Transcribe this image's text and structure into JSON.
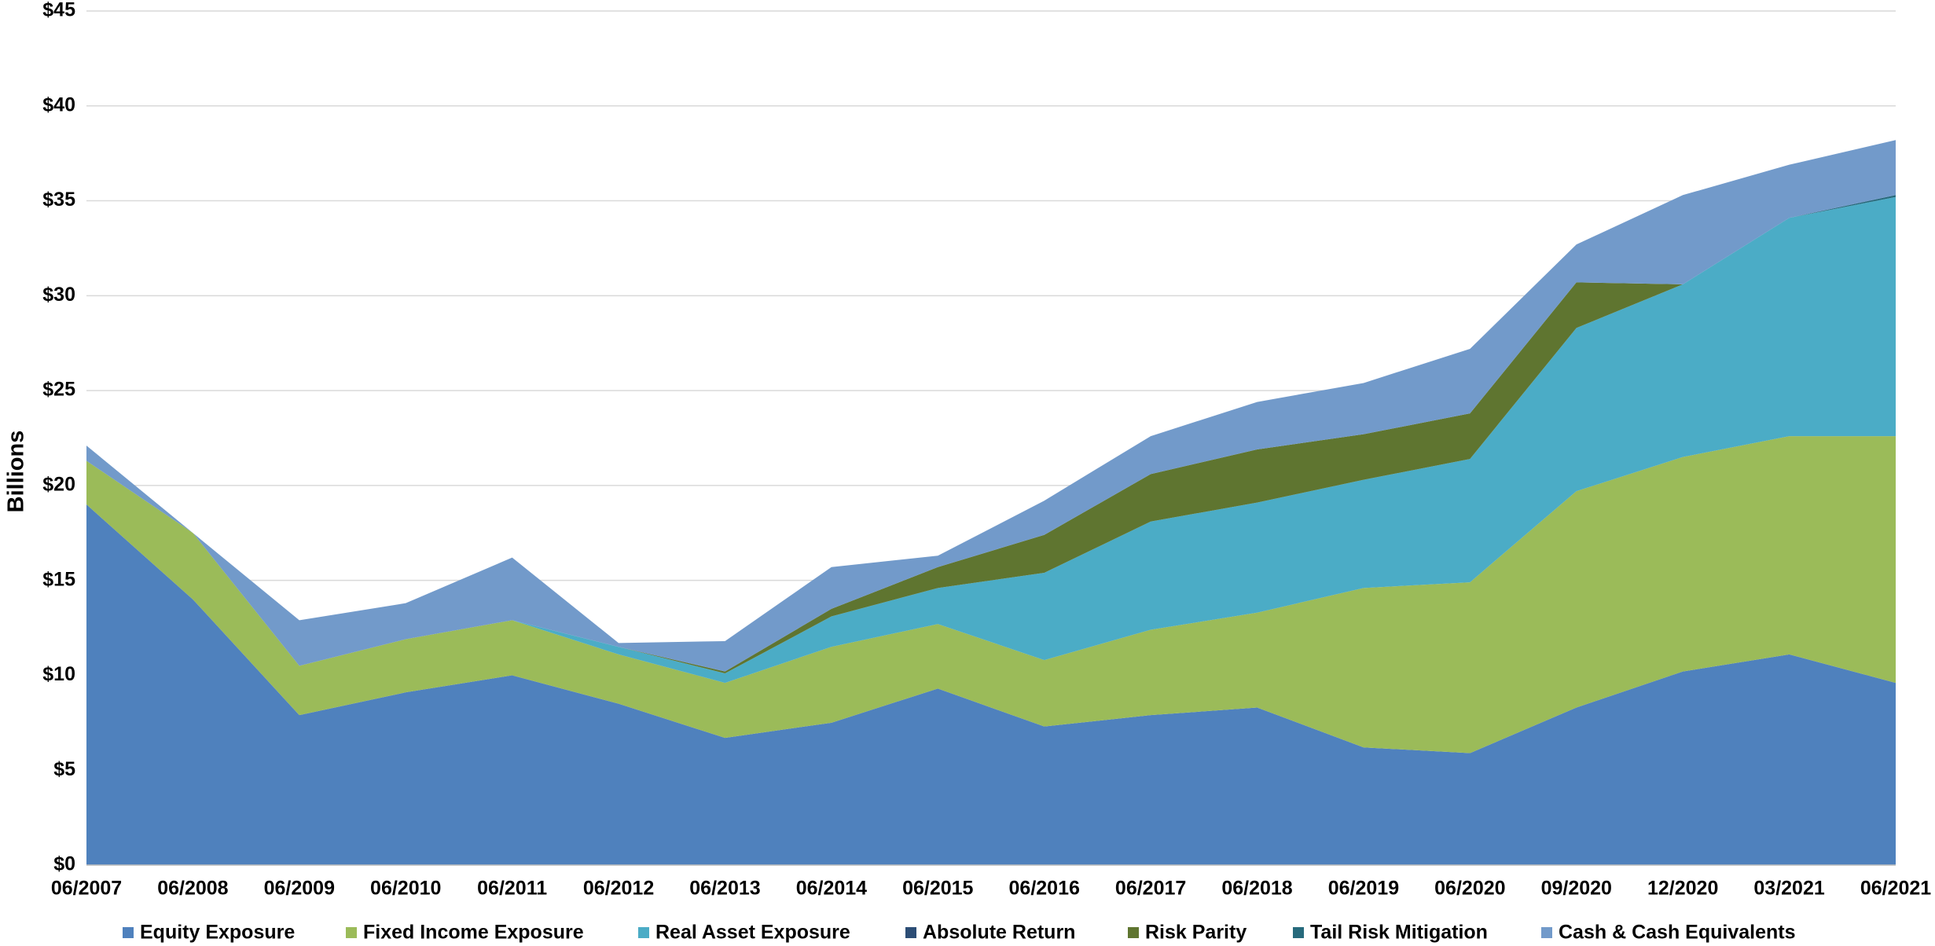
{
  "chart_data": {
    "type": "stacked_area",
    "y_label": "Billions",
    "categories": [
      "06/2007",
      "06/2008",
      "06/2009",
      "06/2010",
      "06/2011",
      "06/2012",
      "06/2013",
      "06/2014",
      "06/2015",
      "06/2016",
      "06/2017",
      "06/2018",
      "06/2019",
      "06/2020",
      "09/2020",
      "12/2020",
      "03/2021",
      "06/2021"
    ],
    "series": [
      {
        "name": "Equity Exposure",
        "color": "#4f81bd",
        "values": [
          19.0,
          14.0,
          7.9,
          9.1,
          10.0,
          8.5,
          6.7,
          7.5,
          9.3,
          7.3,
          7.9,
          8.3,
          6.2,
          5.9,
          8.3,
          10.2,
          11.1,
          9.6
        ]
      },
      {
        "name": "Fixed Income Exposure",
        "color": "#9bbb59",
        "values": [
          2.3,
          3.5,
          2.6,
          2.8,
          2.9,
          2.6,
          2.9,
          4.0,
          3.4,
          3.5,
          4.5,
          5.0,
          8.4,
          9.0,
          11.4,
          11.3,
          11.5,
          13.0
        ]
      },
      {
        "name": "Real Asset Exposure",
        "color": "#4bacc6",
        "values": [
          0,
          0,
          0,
          0,
          0,
          0.4,
          0.5,
          1.6,
          1.9,
          4.6,
          5.7,
          5.8,
          5.7,
          6.5,
          8.6,
          9.1,
          11.5,
          12.6
        ]
      },
      {
        "name": "Absolute Return",
        "color": "#2c4d75",
        "values": [
          0,
          0,
          0,
          0,
          0,
          0,
          0,
          0,
          0,
          0,
          0,
          0,
          0,
          0,
          0,
          0,
          0,
          0
        ]
      },
      {
        "name": "Risk Parity",
        "color": "#5f7530",
        "values": [
          0,
          0,
          0,
          0,
          0,
          0,
          0.1,
          0.4,
          1.1,
          2.0,
          2.5,
          2.8,
          2.4,
          2.4,
          2.4,
          0,
          0,
          0
        ]
      },
      {
        "name": "Tail Risk Mitigation",
        "color": "#276a7c",
        "values": [
          0,
          0,
          0,
          0,
          0,
          0,
          0,
          0,
          0,
          0,
          0,
          0,
          0,
          0,
          0,
          0,
          0,
          0.1
        ]
      },
      {
        "name": "Cash & Cash Equivalents",
        "color": "#729aca",
        "values": [
          0.8,
          0,
          2.4,
          1.9,
          3.3,
          0.2,
          1.6,
          2.2,
          0.6,
          1.8,
          2.0,
          2.5,
          2.7,
          3.4,
          2.0,
          4.7,
          2.8,
          2.9
        ]
      }
    ],
    "ylim": [
      0,
      45
    ],
    "yticks": [
      {
        "value": 0,
        "label": "$0"
      },
      {
        "value": 5,
        "label": "$5"
      },
      {
        "value": 10,
        "label": "$10"
      },
      {
        "value": 15,
        "label": "$15"
      },
      {
        "value": 20,
        "label": "$20"
      },
      {
        "value": 25,
        "label": "$25"
      },
      {
        "value": 30,
        "label": "$30"
      },
      {
        "value": 35,
        "label": "$35"
      },
      {
        "value": 40,
        "label": "$40"
      },
      {
        "value": 45,
        "label": "$45"
      }
    ],
    "grid": true,
    "legend": "bottom"
  }
}
